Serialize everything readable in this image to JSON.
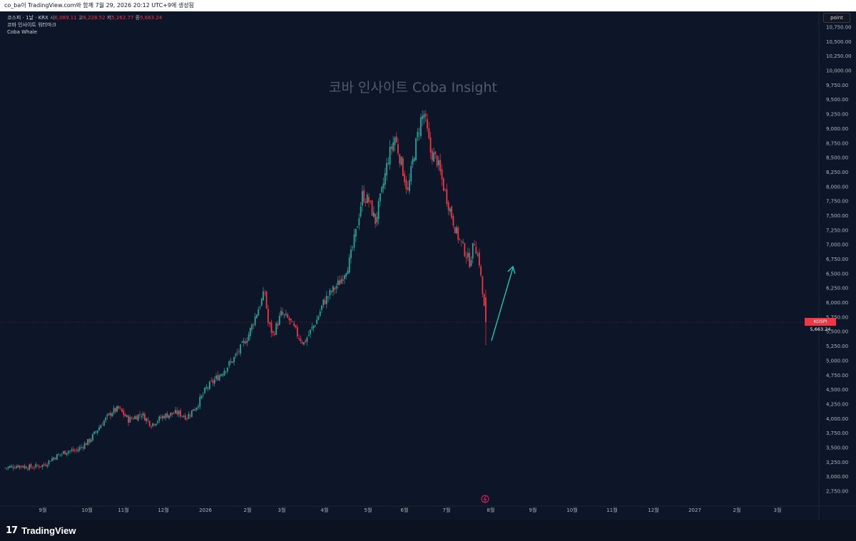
{
  "header": {
    "text": "co_ba이 TradingView.com와 함께 7월 29, 2026 20:12 UTC+9에 생성됨"
  },
  "legend": {
    "symbol": "코스피 · 1날 · KRX",
    "open_label": "시",
    "open": "6,089.11",
    "high_label": "고",
    "high": "6,228.52",
    "low_label": "저",
    "low": "5,262.77",
    "close_label": "종",
    "close": "5,663.24",
    "indicator_1": "코바 인사이트 워터마크",
    "indicator_2": "Coba Whale"
  },
  "watermark": "코바 인사이트 Coba Insight",
  "scale_button": "point",
  "last_price": {
    "symbol": "KOSPI",
    "value": "5,663.24",
    "color": "#f23645"
  },
  "brand": {
    "name": "TradingView",
    "logo_glyph": "17"
  },
  "colors": {
    "up": "#26a69a",
    "down": "#f23645",
    "background": "#0d1628",
    "arrow": "#22d3c5"
  },
  "chart_data": {
    "type": "candlestick",
    "y_ticks": [
      "10,750.00",
      "10,500.00",
      "10,250.00",
      "10,000.00",
      "9,750.00",
      "9,500.00",
      "9,250.00",
      "9,000.00",
      "8,750.00",
      "8,500.00",
      "8,250.00",
      "8,000.00",
      "7,750.00",
      "7,500.00",
      "7,250.00",
      "7,000.00",
      "6,750.00",
      "6,500.00",
      "6,250.00",
      "6,000.00",
      "5,750.00",
      "5,500.00",
      "5,250.00",
      "5,000.00",
      "4,750.00",
      "4,500.00",
      "4,250.00",
      "4,000.00",
      "3,750.00",
      "3,500.00",
      "3,250.00",
      "3,000.00",
      "2,750.00"
    ],
    "x_ticks": [
      "9월",
      "10월",
      "11월",
      "12월",
      "2026",
      "2월",
      "3월",
      "4월",
      "5월",
      "6월",
      "7월",
      "8월",
      "9월",
      "10월",
      "11월",
      "12월",
      "2027",
      "2월",
      "3월"
    ],
    "ylim": [
      2650,
      10850
    ],
    "price_anchors": [
      [
        0,
        3150
      ],
      [
        8,
        3190
      ],
      [
        16,
        3160
      ],
      [
        24,
        3200
      ],
      [
        30,
        3330
      ],
      [
        38,
        3440
      ],
      [
        44,
        3450
      ],
      [
        52,
        3620
      ],
      [
        60,
        3930
      ],
      [
        66,
        4120
      ],
      [
        70,
        4170
      ],
      [
        76,
        3980
      ],
      [
        84,
        4080
      ],
      [
        90,
        3900
      ],
      [
        98,
        4050
      ],
      [
        106,
        4100
      ],
      [
        112,
        4030
      ],
      [
        118,
        4220
      ],
      [
        124,
        4520
      ],
      [
        132,
        4750
      ],
      [
        140,
        5000
      ],
      [
        146,
        5250
      ],
      [
        150,
        5450
      ],
      [
        156,
        5900
      ],
      [
        160,
        6180
      ],
      [
        162,
        5650
      ],
      [
        165,
        5450
      ],
      [
        170,
        5800
      ],
      [
        175,
        5700
      ],
      [
        180,
        5450
      ],
      [
        184,
        5300
      ],
      [
        188,
        5500
      ],
      [
        192,
        5700
      ],
      [
        196,
        6000
      ],
      [
        200,
        6150
      ],
      [
        206,
        6350
      ],
      [
        212,
        6700
      ],
      [
        216,
        7200
      ],
      [
        220,
        7850
      ],
      [
        224,
        7750
      ],
      [
        228,
        7400
      ],
      [
        232,
        7900
      ],
      [
        236,
        8500
      ],
      [
        240,
        8850
      ],
      [
        244,
        8400
      ],
      [
        248,
        7900
      ],
      [
        252,
        8600
      ],
      [
        256,
        9150
      ],
      [
        258,
        9250
      ],
      [
        262,
        8600
      ],
      [
        266,
        8450
      ],
      [
        270,
        8000
      ],
      [
        274,
        7600
      ],
      [
        278,
        7200
      ],
      [
        282,
        6950
      ],
      [
        286,
        6700
      ],
      [
        289,
        7050
      ],
      [
        292,
        6700
      ],
      [
        294,
        6150
      ],
      [
        296,
        5663
      ]
    ],
    "last_close": 5663.24,
    "annotation": "projected rebound arrow"
  }
}
